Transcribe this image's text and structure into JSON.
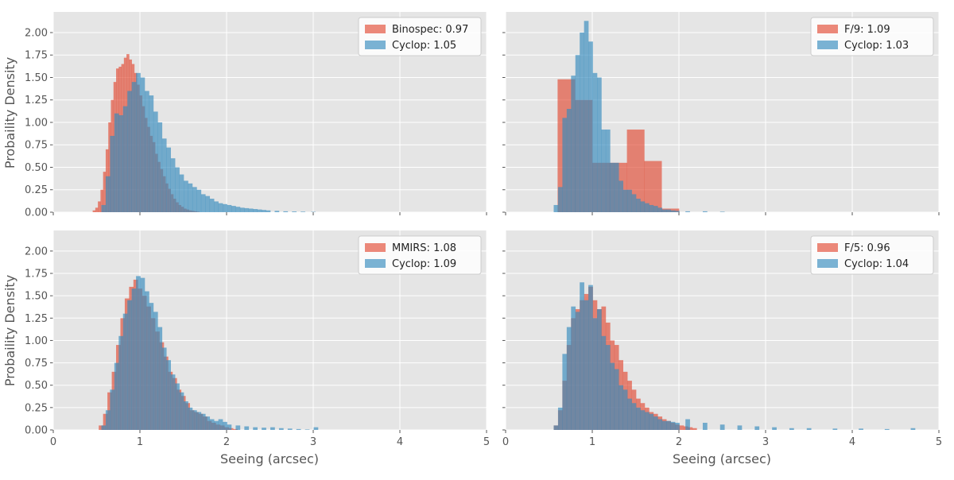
{
  "colors": {
    "background": "#ffffff",
    "panel": "#e5e5e5",
    "grid": "#ffffff",
    "series_a": "#e24a33",
    "series_b": "#348abd",
    "text": "#555555",
    "legend_bg": "#ffffff",
    "legend_border": "#cccccc"
  },
  "shared": {
    "ylabel": "Probaility Density",
    "xlabel": "Seeing (arcsec)",
    "xticks": [
      "0",
      "1",
      "2",
      "3",
      "4",
      "5"
    ],
    "yticks": [
      "0.00",
      "0.25",
      "0.50",
      "0.75",
      "1.00",
      "1.25",
      "1.50",
      "1.75",
      "2.00"
    ],
    "xlim": [
      0,
      5
    ],
    "ylim": [
      0,
      2.23
    ]
  },
  "chart_data": [
    {
      "type": "bar",
      "xlim": [
        0,
        5
      ],
      "ylim": [
        0,
        2.23
      ],
      "grid": true,
      "legend_position": "top-right",
      "series": [
        {
          "name": "Binospec: 0.97",
          "bin_width": 0.03,
          "x": [
            0.47,
            0.5,
            0.53,
            0.56,
            0.59,
            0.62,
            0.65,
            0.68,
            0.71,
            0.74,
            0.77,
            0.8,
            0.83,
            0.86,
            0.89,
            0.92,
            0.95,
            0.98,
            1.01,
            1.04,
            1.07,
            1.1,
            1.13,
            1.16,
            1.19,
            1.22,
            1.25,
            1.28,
            1.31,
            1.34,
            1.37,
            1.4,
            1.43,
            1.46,
            1.49,
            1.52,
            1.55,
            1.58,
            1.61,
            1.64,
            1.67
          ],
          "values": [
            0.02,
            0.05,
            0.12,
            0.25,
            0.45,
            0.7,
            1.0,
            1.25,
            1.45,
            1.6,
            1.62,
            1.65,
            1.72,
            1.76,
            1.7,
            1.65,
            1.55,
            1.42,
            1.3,
            1.18,
            1.05,
            0.95,
            0.85,
            0.78,
            0.65,
            0.56,
            0.48,
            0.4,
            0.32,
            0.26,
            0.2,
            0.15,
            0.11,
            0.08,
            0.06,
            0.04,
            0.03,
            0.02,
            0.015,
            0.01,
            0.005
          ]
        },
        {
          "name": "Cyclop: 1.05",
          "bin_width": 0.05,
          "x": [
            0.58,
            0.63,
            0.68,
            0.73,
            0.78,
            0.83,
            0.88,
            0.93,
            0.98,
            1.03,
            1.08,
            1.13,
            1.18,
            1.23,
            1.28,
            1.33,
            1.38,
            1.43,
            1.48,
            1.53,
            1.58,
            1.63,
            1.68,
            1.73,
            1.78,
            1.83,
            1.88,
            1.93,
            1.98,
            2.03,
            2.08,
            2.13,
            2.18,
            2.23,
            2.28,
            2.33,
            2.38,
            2.43,
            2.48,
            2.58,
            2.68,
            2.78,
            2.88,
            3.0
          ],
          "values": [
            0.08,
            0.4,
            0.85,
            1.1,
            1.08,
            1.18,
            1.35,
            1.45,
            1.55,
            1.5,
            1.35,
            1.3,
            1.12,
            1.0,
            0.82,
            0.72,
            0.6,
            0.5,
            0.42,
            0.35,
            0.32,
            0.28,
            0.25,
            0.2,
            0.18,
            0.15,
            0.12,
            0.1,
            0.09,
            0.08,
            0.07,
            0.06,
            0.05,
            0.045,
            0.04,
            0.035,
            0.03,
            0.025,
            0.02,
            0.015,
            0.01,
            0.008,
            0.006,
            0.004
          ]
        }
      ]
    },
    {
      "type": "bar",
      "xlim": [
        0,
        5
      ],
      "ylim": [
        0,
        2.23
      ],
      "grid": true,
      "legend_position": "top-right",
      "series": [
        {
          "name": "F/9: 1.09",
          "bin_width": 0.2,
          "x": [
            0.7,
            0.9,
            1.1,
            1.3,
            1.5,
            1.7,
            1.9
          ],
          "values": [
            1.48,
            1.25,
            0.55,
            0.55,
            0.92,
            0.57,
            0.04
          ]
        },
        {
          "name": "Cyclop: 1.03",
          "bin_width": 0.05,
          "x": [
            0.58,
            0.63,
            0.68,
            0.73,
            0.78,
            0.83,
            0.88,
            0.93,
            0.98,
            1.03,
            1.08,
            1.13,
            1.18,
            1.23,
            1.28,
            1.33,
            1.38,
            1.43,
            1.48,
            1.53,
            1.58,
            1.63,
            1.68,
            1.73,
            1.78,
            1.83,
            1.88,
            1.93,
            1.98,
            2.1,
            2.3,
            2.5
          ],
          "values": [
            0.08,
            0.28,
            1.05,
            1.15,
            1.52,
            1.75,
            2.0,
            2.13,
            1.9,
            1.55,
            1.5,
            0.92,
            0.92,
            0.55,
            0.55,
            0.35,
            0.25,
            0.25,
            0.2,
            0.15,
            0.12,
            0.1,
            0.08,
            0.07,
            0.05,
            0.03,
            0.03,
            0.02,
            0.015,
            0.01,
            0.01,
            0.005
          ]
        }
      ]
    },
    {
      "type": "bar",
      "xlim": [
        0,
        5
      ],
      "ylim": [
        0,
        2.23
      ],
      "grid": true,
      "legend_position": "top-right",
      "series": [
        {
          "name": "MMIRS: 1.08",
          "bin_width": 0.05,
          "x": [
            0.55,
            0.6,
            0.65,
            0.7,
            0.75,
            0.8,
            0.85,
            0.9,
            0.95,
            1.0,
            1.05,
            1.1,
            1.15,
            1.2,
            1.25,
            1.3,
            1.35,
            1.4,
            1.45,
            1.5,
            1.55,
            1.6,
            1.65,
            1.7,
            1.75,
            1.8,
            1.85,
            1.9,
            1.95,
            2.0,
            2.05,
            2.1
          ],
          "values": [
            0.05,
            0.18,
            0.42,
            0.65,
            0.95,
            1.25,
            1.47,
            1.6,
            1.68,
            1.58,
            1.5,
            1.38,
            1.25,
            1.1,
            0.98,
            0.82,
            0.65,
            0.58,
            0.45,
            0.38,
            0.3,
            0.22,
            0.2,
            0.18,
            0.15,
            0.1,
            0.08,
            0.06,
            0.05,
            0.03,
            0.02,
            0.01
          ]
        },
        {
          "name": "Cyclop: 1.09",
          "bin_width": 0.05,
          "x": [
            0.58,
            0.63,
            0.68,
            0.73,
            0.78,
            0.83,
            0.88,
            0.93,
            0.98,
            1.03,
            1.08,
            1.13,
            1.18,
            1.23,
            1.28,
            1.33,
            1.38,
            1.43,
            1.48,
            1.53,
            1.58,
            1.63,
            1.68,
            1.73,
            1.78,
            1.83,
            1.88,
            1.93,
            1.98,
            2.03,
            2.13,
            2.23,
            2.33,
            2.43,
            2.53,
            2.63,
            2.73,
            2.83,
            2.93,
            3.03
          ],
          "values": [
            0.05,
            0.22,
            0.45,
            0.75,
            1.05,
            1.3,
            1.45,
            1.58,
            1.72,
            1.7,
            1.55,
            1.42,
            1.32,
            1.15,
            0.92,
            0.78,
            0.62,
            0.52,
            0.42,
            0.32,
            0.25,
            0.22,
            0.2,
            0.18,
            0.15,
            0.12,
            0.1,
            0.12,
            0.09,
            0.06,
            0.05,
            0.04,
            0.03,
            0.025,
            0.03,
            0.02,
            0.015,
            0.01,
            0.005,
            0.03
          ]
        }
      ]
    },
    {
      "type": "bar",
      "xlim": [
        0,
        5
      ],
      "ylim": [
        0,
        2.23
      ],
      "grid": true,
      "legend_position": "top-right",
      "series": [
        {
          "name": "F/5: 0.96",
          "bin_width": 0.05,
          "x": [
            0.58,
            0.63,
            0.68,
            0.73,
            0.78,
            0.83,
            0.88,
            0.93,
            0.98,
            1.03,
            1.08,
            1.13,
            1.18,
            1.23,
            1.28,
            1.33,
            1.38,
            1.43,
            1.48,
            1.53,
            1.58,
            1.63,
            1.68,
            1.73,
            1.78,
            1.83,
            1.88,
            1.93,
            1.98,
            2.03,
            2.08,
            2.13,
            2.18
          ],
          "values": [
            0.05,
            0.22,
            0.55,
            0.95,
            1.25,
            1.35,
            1.45,
            1.52,
            1.6,
            1.45,
            1.35,
            1.38,
            1.2,
            1.0,
            0.95,
            0.78,
            0.65,
            0.55,
            0.45,
            0.35,
            0.3,
            0.25,
            0.2,
            0.18,
            0.15,
            0.12,
            0.1,
            0.08,
            0.06,
            0.05,
            0.04,
            0.03,
            0.02
          ]
        },
        {
          "name": "Cyclop: 1.04",
          "bin_width": 0.05,
          "x": [
            0.58,
            0.63,
            0.68,
            0.73,
            0.78,
            0.83,
            0.88,
            0.93,
            0.98,
            1.03,
            1.08,
            1.13,
            1.18,
            1.23,
            1.28,
            1.33,
            1.38,
            1.43,
            1.48,
            1.53,
            1.58,
            1.63,
            1.68,
            1.73,
            1.78,
            1.83,
            1.88,
            1.93,
            1.98,
            2.1,
            2.3,
            2.5,
            2.7,
            2.9,
            3.1,
            3.3,
            3.5,
            3.8,
            4.1,
            4.4,
            4.7
          ],
          "values": [
            0.05,
            0.25,
            0.85,
            1.15,
            1.38,
            1.32,
            1.65,
            1.45,
            1.62,
            1.25,
            1.35,
            1.05,
            0.95,
            0.75,
            0.68,
            0.5,
            0.45,
            0.35,
            0.3,
            0.25,
            0.22,
            0.2,
            0.18,
            0.15,
            0.12,
            0.1,
            0.1,
            0.09,
            0.08,
            0.12,
            0.08,
            0.06,
            0.05,
            0.04,
            0.03,
            0.02,
            0.02,
            0.015,
            0.015,
            0.01,
            0.02
          ]
        }
      ]
    }
  ]
}
